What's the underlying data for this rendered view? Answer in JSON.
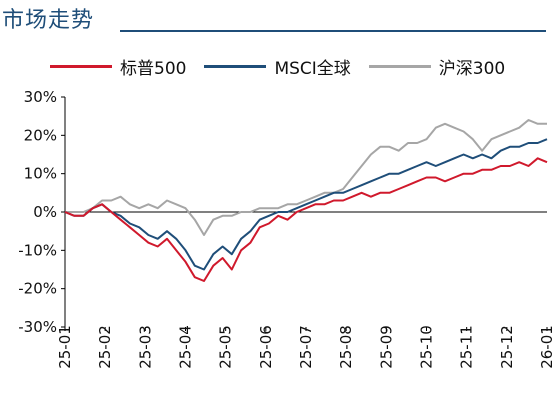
{
  "header": {
    "title": "市场走势"
  },
  "chart_data": {
    "type": "line",
    "y_ticks": [
      "30%",
      "20%",
      "10%",
      "0%",
      "-10%",
      "-20%",
      "-30%"
    ],
    "ylim": [
      -30,
      30
    ],
    "x_ticks": [
      "25-01",
      "25-02",
      "25-03",
      "25-04",
      "25-05",
      "25-06",
      "25-07",
      "25-08",
      "25-09",
      "25-10",
      "25-11",
      "25-12",
      "26-01"
    ],
    "grid": false,
    "legend": "top",
    "series": [
      {
        "name": "标普500",
        "color": "#d0192c",
        "values": [
          0,
          -1,
          -1,
          1,
          2,
          0,
          -2,
          -4,
          -6,
          -8,
          -9,
          -7,
          -10,
          -13,
          -17,
          -18,
          -14,
          -12,
          -15,
          -10,
          -8,
          -4,
          -3,
          -1,
          -2,
          0,
          1,
          2,
          2,
          3,
          3,
          4,
          5,
          4,
          5,
          5,
          6,
          7,
          8,
          9,
          9,
          8,
          9,
          10,
          10,
          11,
          11,
          12,
          12,
          13,
          12,
          14,
          13
        ]
      },
      {
        "name": "MSCI全球",
        "color": "#1f4e79",
        "values": [
          0,
          -1,
          -1,
          1,
          2,
          0,
          -1,
          -3,
          -4,
          -6,
          -7,
          -5,
          -7,
          -10,
          -14,
          -15,
          -11,
          -9,
          -11,
          -7,
          -5,
          -2,
          -1,
          0,
          0,
          1,
          2,
          3,
          4,
          5,
          5,
          6,
          7,
          8,
          9,
          10,
          10,
          11,
          12,
          13,
          12,
          13,
          14,
          15,
          14,
          15,
          14,
          16,
          17,
          17,
          18,
          18,
          19
        ]
      },
      {
        "name": "沪深300",
        "color": "#a6a6a6",
        "values": [
          0,
          0,
          0,
          1,
          3,
          3,
          4,
          2,
          1,
          2,
          1,
          3,
          2,
          1,
          -2,
          -6,
          -2,
          -1,
          -1,
          0,
          0,
          1,
          1,
          1,
          2,
          2,
          3,
          4,
          5,
          5,
          6,
          9,
          12,
          15,
          17,
          17,
          16,
          18,
          18,
          19,
          22,
          23,
          22,
          21,
          19,
          16,
          19,
          20,
          21,
          22,
          24,
          23,
          23
        ]
      }
    ]
  }
}
